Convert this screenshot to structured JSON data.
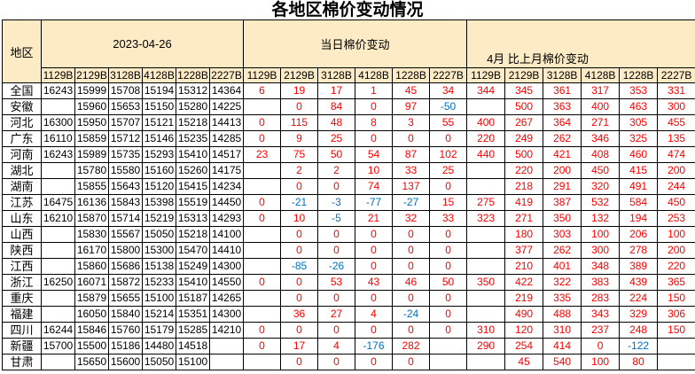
{
  "title": "各地区棉价变动情况",
  "table": {
    "region_header": "地区",
    "groups": [
      {
        "label": "2023-04-26"
      },
      {
        "label": "当日棉价变动"
      },
      {
        "label": "4月 比上月棉价变动"
      }
    ],
    "subcolumns": [
      "1129B",
      "2129B",
      "3128B",
      "4128B",
      "1228B",
      "2227B"
    ],
    "rows": [
      {
        "region": "全国",
        "prices": [
          "16243",
          "15999",
          "15708",
          "15194",
          "15312",
          "14364"
        ],
        "daily": [
          "6",
          "19",
          "17",
          "1",
          "45",
          "34"
        ],
        "april": [
          "344",
          "345",
          "361",
          "317",
          "353",
          "331"
        ]
      },
      {
        "region": "安徽",
        "prices": [
          "",
          "15960",
          "15653",
          "15150",
          "15280",
          "14225"
        ],
        "daily": [
          "",
          "0",
          "84",
          "0",
          "97",
          "-50"
        ],
        "april": [
          "",
          "500",
          "363",
          "400",
          "463",
          "300"
        ]
      },
      {
        "region": "河北",
        "prices": [
          "16300",
          "15950",
          "15707",
          "15121",
          "15218",
          "14413"
        ],
        "daily": [
          "0",
          "115",
          "48",
          "8",
          "3",
          "55"
        ],
        "april": [
          "400",
          "267",
          "364",
          "271",
          "305",
          "455"
        ]
      },
      {
        "region": "广东",
        "prices": [
          "16110",
          "15859",
          "15712",
          "15146",
          "15235",
          "14285"
        ],
        "daily": [
          "0",
          "9",
          "25",
          "0",
          "0",
          "0"
        ],
        "april": [
          "220",
          "249",
          "262",
          "346",
          "325",
          "135"
        ]
      },
      {
        "region": "河南",
        "prices": [
          "16243",
          "15989",
          "15735",
          "15293",
          "15410",
          "14517"
        ],
        "daily": [
          "23",
          "75",
          "50",
          "54",
          "87",
          "102"
        ],
        "april": [
          "440",
          "500",
          "421",
          "408",
          "460",
          "474"
        ]
      },
      {
        "region": "湖北",
        "prices": [
          "",
          "15780",
          "15580",
          "15160",
          "15260",
          "14175"
        ],
        "daily": [
          "",
          "2",
          "2",
          "10",
          "33",
          "25"
        ],
        "april": [
          "",
          "220",
          "200",
          "450",
          "415",
          "200"
        ]
      },
      {
        "region": "湖南",
        "prices": [
          "",
          "15855",
          "15643",
          "15120",
          "15415",
          "14234"
        ],
        "daily": [
          "",
          "0",
          "0",
          "74",
          "137",
          "0"
        ],
        "april": [
          "",
          "218",
          "291",
          "320",
          "491",
          "244"
        ]
      },
      {
        "region": "江苏",
        "prices": [
          "16475",
          "16136",
          "15843",
          "15398",
          "15519",
          "14450"
        ],
        "daily": [
          "0",
          "-21",
          "-3",
          "-77",
          "-27",
          "15"
        ],
        "april": [
          "275",
          "419",
          "387",
          "532",
          "584",
          "450"
        ]
      },
      {
        "region": "山东",
        "prices": [
          "16210",
          "15870",
          "15714",
          "15219",
          "15313",
          "14293"
        ],
        "daily": [
          "0",
          "10",
          "-5",
          "21",
          "32",
          "33"
        ],
        "april": [
          "323",
          "271",
          "350",
          "132",
          "194",
          "253"
        ]
      },
      {
        "region": "山西",
        "prices": [
          "",
          "15830",
          "15567",
          "15050",
          "15218",
          "14100"
        ],
        "daily": [
          "",
          "0",
          "0",
          "0",
          "0",
          "0"
        ],
        "april": [
          "",
          "180",
          "303",
          "100",
          "206",
          "100"
        ]
      },
      {
        "region": "陕西",
        "prices": [
          "",
          "16170",
          "15800",
          "15300",
          "15470",
          "14410"
        ],
        "daily": [
          "",
          "0",
          "0",
          "0",
          "0",
          "0"
        ],
        "april": [
          "",
          "377",
          "262",
          "300",
          "278",
          "200"
        ]
      },
      {
        "region": "江西",
        "prices": [
          "",
          "15860",
          "15686",
          "15138",
          "15249",
          "14300"
        ],
        "daily": [
          "",
          "-85",
          "-26",
          "0",
          "0",
          "0"
        ],
        "april": [
          "",
          "210",
          "401",
          "348",
          "389",
          "220"
        ]
      },
      {
        "region": "浙江",
        "prices": [
          "16250",
          "16071",
          "15872",
          "15233",
          "15410",
          "14550"
        ],
        "daily": [
          "0",
          "0",
          "53",
          "43",
          "46",
          "50"
        ],
        "april": [
          "350",
          "422",
          "322",
          "383",
          "439",
          "365"
        ]
      },
      {
        "region": "重庆",
        "prices": [
          "",
          "15879",
          "15655",
          "15100",
          "15187",
          "14265"
        ],
        "daily": [
          "",
          "0",
          "0",
          "0",
          "0",
          "0"
        ],
        "april": [
          "",
          "219",
          "335",
          "283",
          "224",
          "150"
        ]
      },
      {
        "region": "福建",
        "prices": [
          "",
          "16050",
          "15840",
          "15214",
          "15351",
          "14300"
        ],
        "daily": [
          "",
          "36",
          "27",
          "4",
          "-24",
          "0"
        ],
        "april": [
          "",
          "490",
          "488",
          "343",
          "329",
          "306"
        ]
      },
      {
        "region": "四川",
        "prices": [
          "16244",
          "15846",
          "15760",
          "15179",
          "15285",
          "14210"
        ],
        "daily": [
          "0",
          "0",
          "0",
          "0",
          "0",
          "0"
        ],
        "april": [
          "310",
          "120",
          "310",
          "237",
          "248",
          "150"
        ]
      },
      {
        "region": "新疆",
        "prices": [
          "15700",
          "15500",
          "15186",
          "14480",
          "14518",
          ""
        ],
        "daily": [
          "0",
          "17",
          "4",
          "-176",
          "282",
          ""
        ],
        "april": [
          "290",
          "254",
          "414",
          "0",
          "-122",
          ""
        ]
      },
      {
        "region": "甘肃",
        "prices": [
          "",
          "15650",
          "15600",
          "15050",
          "15100",
          ""
        ],
        "daily": [
          "",
          "0",
          "0",
          "0",
          "0",
          ""
        ],
        "april": [
          "",
          "45",
          "540",
          "100",
          "80",
          ""
        ]
      }
    ]
  },
  "colors": {
    "header_fill": "#FCEBC5",
    "positive_change": "#FE0000",
    "negative_change": "#0070C0",
    "grid": "#000000"
  }
}
